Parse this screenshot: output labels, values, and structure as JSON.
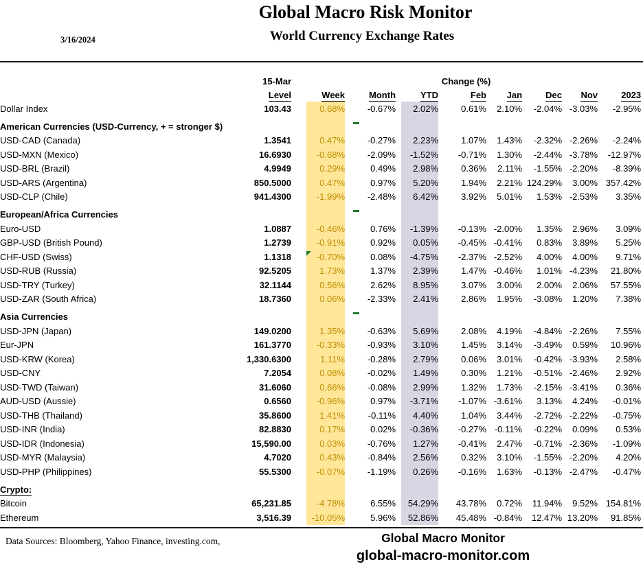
{
  "report": {
    "title": "Global Macro Risk Monitor",
    "subtitle": "World Currency Exchange Rates",
    "date": "3/16/2024"
  },
  "table": {
    "group_headers": {
      "level_date": "15-Mar",
      "change_label": "Change (%)"
    },
    "columns": {
      "level": "Level",
      "week": "Week",
      "month": "Month",
      "ytd": "YTD",
      "feb": "Feb",
      "jan": "Jan",
      "dec": "Dec",
      "nov": "Nov",
      "y2023": "2023"
    },
    "rows": [
      {
        "type": "data",
        "label": "Dollar Index",
        "level": "103.43",
        "week": "0.68%",
        "month": "-0.67%",
        "ytd": "2.02%",
        "feb": "0.61%",
        "jan": "2.10%",
        "dec": "-2.04%",
        "nov": "-3.03%",
        "y2023": "-2.95%"
      },
      {
        "type": "section",
        "label": "American Currencies (USD-Currency, + = stronger $)",
        "green_dash": true
      },
      {
        "type": "data",
        "label": "USD-CAD (Canada)",
        "level": "1.3541",
        "week": "0.47%",
        "month": "-0.27%",
        "ytd": "2.23%",
        "feb": "1.07%",
        "jan": "1.43%",
        "dec": "-2.32%",
        "nov": "-2.26%",
        "y2023": "-2.24%"
      },
      {
        "type": "data",
        "label": "USD-MXN  (Mexico)",
        "level": "16.6930",
        "week": "-0.68%",
        "month": "-2.09%",
        "ytd": "-1.52%",
        "feb": "-0.71%",
        "jan": "1.30%",
        "dec": "-2.44%",
        "nov": "-3.78%",
        "y2023": "-12.97%"
      },
      {
        "type": "data",
        "label": "USD-BRL (Brazil)",
        "level": "4.9949",
        "week": "0.29%",
        "month": "0.49%",
        "ytd": "2.98%",
        "feb": "0.36%",
        "jan": "2.11%",
        "dec": "-1.55%",
        "nov": "-2.20%",
        "y2023": "-8.39%"
      },
      {
        "type": "data",
        "label": "USD-ARS (Argentina)",
        "level": "850.5000",
        "week": "0.47%",
        "month": "0.97%",
        "ytd": "5.20%",
        "feb": "1.94%",
        "jan": "2.21%",
        "dec": "124.29%",
        "nov": "3.00%",
        "y2023": "357.42%"
      },
      {
        "type": "data",
        "label": "USD-CLP (Chile)",
        "level": "941.4300",
        "week": "-1.99%",
        "month": "-2.48%",
        "ytd": "6.42%",
        "feb": "3.92%",
        "jan": "5.01%",
        "dec": "1.53%",
        "nov": "-2.53%",
        "y2023": "3.35%"
      },
      {
        "type": "section",
        "label": "European/Africa Currencies",
        "green_dash": true
      },
      {
        "type": "data",
        "label": "Euro-USD",
        "level": "1.0887",
        "week": "-0.46%",
        "month": "0.76%",
        "ytd": "-1.39%",
        "feb": "-0.13%",
        "jan": "-2.00%",
        "dec": "1.35%",
        "nov": "2.96%",
        "y2023": "3.09%"
      },
      {
        "type": "data",
        "label": "GBP-USD (British Pound)",
        "level": "1.2739",
        "week": "-0.91%",
        "month": "0.92%",
        "ytd": "0.05%",
        "feb": "-0.45%",
        "jan": "-0.41%",
        "dec": "0.83%",
        "nov": "3.89%",
        "y2023": "5.25%"
      },
      {
        "type": "data",
        "label": "CHF-USD (Swiss)",
        "level": "1.1318",
        "week": "-0.70%",
        "month": "0.08%",
        "ytd": "-4.75%",
        "feb": "-2.37%",
        "jan": "-2.52%",
        "dec": "4.00%",
        "nov": "4.00%",
        "y2023": "9.71%",
        "week_flag": true
      },
      {
        "type": "data",
        "label": "USD-RUB (Russia)",
        "level": "92.5205",
        "week": "1.73%",
        "month": "1.37%",
        "ytd": "2.39%",
        "feb": "1.47%",
        "jan": "-0.46%",
        "dec": "1.01%",
        "nov": "-4.23%",
        "y2023": "21.80%"
      },
      {
        "type": "data",
        "label": "USD-TRY (Turkey)",
        "level": "32.1144",
        "week": "0.56%",
        "month": "2.62%",
        "ytd": "8.95%",
        "feb": "3.07%",
        "jan": "3.00%",
        "dec": "2.00%",
        "nov": "2.06%",
        "y2023": "57.55%"
      },
      {
        "type": "data",
        "label": "USD-ZAR (South Africa)",
        "level": "18.7360",
        "week": "0.06%",
        "month": "-2.33%",
        "ytd": "2.41%",
        "feb": "2.86%",
        "jan": "1.95%",
        "dec": "-3.08%",
        "nov": "1.20%",
        "y2023": "7.38%"
      },
      {
        "type": "section",
        "label": "Asia Currencies",
        "green_dash": true
      },
      {
        "type": "data",
        "label": "USD-JPN (Japan)",
        "level": "149.0200",
        "week": "1.35%",
        "month": "-0.63%",
        "ytd": "5.69%",
        "feb": "2.08%",
        "jan": "4.19%",
        "dec": "-4.84%",
        "nov": "-2.26%",
        "y2023": "7.55%"
      },
      {
        "type": "data",
        "label": "Eur-JPN",
        "level": "161.3770",
        "week": "-0.33%",
        "month": "-0.93%",
        "ytd": "3.10%",
        "feb": "1.45%",
        "jan": "3.14%",
        "dec": "-3.49%",
        "nov": "0.59%",
        "y2023": "10.96%"
      },
      {
        "type": "data",
        "label": "USD-KRW (Korea)",
        "level": "1,330.6300",
        "week": "1.11%",
        "month": "-0.28%",
        "ytd": "2.79%",
        "feb": "0.06%",
        "jan": "3.01%",
        "dec": "-0.42%",
        "nov": "-3.93%",
        "y2023": "2.58%"
      },
      {
        "type": "data",
        "label": "USD-CNY",
        "level": "7.2054",
        "week": "0.08%",
        "month": "-0.02%",
        "ytd": "1.49%",
        "feb": "0.30%",
        "jan": "1.21%",
        "dec": "-0.51%",
        "nov": "-2.46%",
        "y2023": "2.92%"
      },
      {
        "type": "data",
        "label": "USD-TWD (Taiwan)",
        "level": "31.6060",
        "week": "0.66%",
        "month": "-0.08%",
        "ytd": "2.99%",
        "feb": "1.32%",
        "jan": "1.73%",
        "dec": "-2.15%",
        "nov": "-3.41%",
        "y2023": "0.36%"
      },
      {
        "type": "data",
        "label": "AUD-USD (Aussie)",
        "level": "0.6560",
        "week": "-0.96%",
        "month": "0.97%",
        "ytd": "-3.71%",
        "feb": "-1.07%",
        "jan": "-3.61%",
        "dec": "3.13%",
        "nov": "4.24%",
        "y2023": "-0.01%"
      },
      {
        "type": "data",
        "label": "USD-THB  (Thailand)",
        "level": "35.8600",
        "week": "1.41%",
        "month": "-0.11%",
        "ytd": "4.40%",
        "feb": "1.04%",
        "jan": "3.44%",
        "dec": "-2.72%",
        "nov": "-2.22%",
        "y2023": "-0.75%"
      },
      {
        "type": "data",
        "label": "USD-INR (India)",
        "level": "82.8830",
        "week": "0.17%",
        "month": "0.02%",
        "ytd": "-0.36%",
        "feb": "-0.27%",
        "jan": "-0.11%",
        "dec": "-0.22%",
        "nov": "0.09%",
        "y2023": "0.53%"
      },
      {
        "type": "data",
        "label": "USD-IDR (Indonesia)",
        "level": "15,590.00",
        "week": "0.03%",
        "month": "-0.76%",
        "ytd": "1.27%",
        "feb": "-0.41%",
        "jan": "2.47%",
        "dec": "-0.71%",
        "nov": "-2.36%",
        "y2023": "-1.09%"
      },
      {
        "type": "data",
        "label": "USD-MYR (Malaysia)",
        "level": "4.7020",
        "week": "0.43%",
        "month": "-0.84%",
        "ytd": "2.56%",
        "feb": "0.32%",
        "jan": "3.10%",
        "dec": "-1.55%",
        "nov": "-2.20%",
        "y2023": "4.20%"
      },
      {
        "type": "data",
        "label": "USD-PHP (Philippines)",
        "level": "55.5300",
        "week": "-0.07%",
        "month": "-1.19%",
        "ytd": "0.26%",
        "feb": "-0.16%",
        "jan": "1.63%",
        "dec": "-0.13%",
        "nov": "-2.47%",
        "y2023": "-0.47%"
      },
      {
        "type": "section",
        "label": "Crypto:",
        "underline": true
      },
      {
        "type": "data",
        "label": "Bitcoin",
        "level": "65,231.85",
        "week": "-4.78%",
        "month": "6.55%",
        "ytd": "54.29%",
        "feb": "43.78%",
        "jan": "0.72%",
        "dec": "11.94%",
        "nov": "9.52%",
        "y2023": "154.81%"
      },
      {
        "type": "data",
        "label": "Ethereum",
        "level": "3,516.39",
        "week": "-10.05%",
        "month": "5.96%",
        "ytd": "52.86%",
        "feb": "45.48%",
        "jan": "-0.84%",
        "dec": "12.47%",
        "nov": "13.20%",
        "y2023": "91.85%"
      }
    ]
  },
  "footer": {
    "sources": "Data Sources:  Bloomberg,  Yahoo Finance, investing.com,",
    "brand_name": "Global Macro Monitor",
    "brand_url": "global-macro-monitor.com"
  },
  "colors": {
    "week_highlight_bg": "#FFE699",
    "week_text": "#BF8F00",
    "ytd_highlight_bg": "#D9D6E4",
    "marker_green": "#1F7A2E"
  }
}
